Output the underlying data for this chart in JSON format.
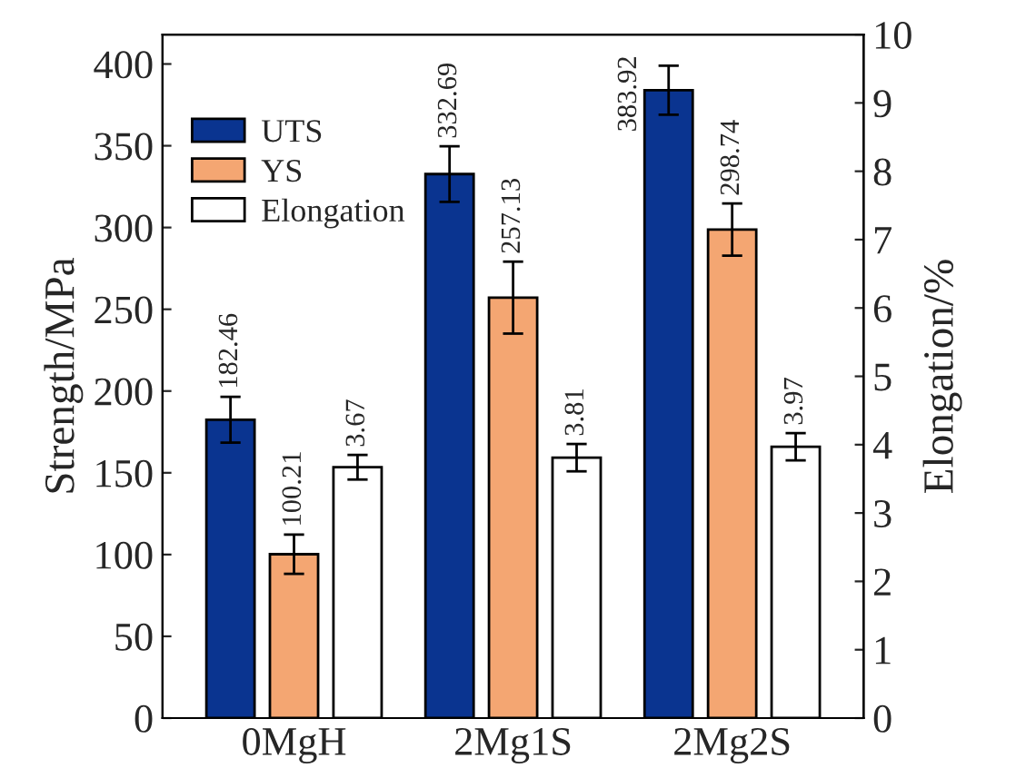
{
  "chart_data": {
    "type": "bar",
    "categories": [
      "0MgH",
      "2Mg1S",
      "2Mg2S"
    ],
    "ylabel": "Strength/MPa",
    "y2label": "Elongation/%",
    "series": [
      {
        "name": "UTS",
        "color": "#0a3490",
        "values": [
          182.46,
          332.69,
          383.92
        ],
        "errors": [
          14,
          17,
          15
        ]
      },
      {
        "name": "YS",
        "color": "#f4a672",
        "values": [
          100.21,
          257.13,
          298.74
        ],
        "errors": [
          12,
          22,
          16
        ]
      },
      {
        "name": "Elongation",
        "color": "#ffffff",
        "values": [
          3.67,
          3.81,
          3.97
        ],
        "errors": [
          0.18,
          0.2,
          0.2
        ],
        "axis": "y2"
      }
    ],
    "data_labels": true,
    "legend": "top left",
    "ylim": [
      0,
      418
    ],
    "yticks": [
      0,
      50,
      100,
      150,
      200,
      250,
      300,
      350,
      400
    ],
    "y2lim": [
      0,
      10
    ],
    "y2ticks": [
      0,
      1,
      2,
      3,
      4,
      5,
      6,
      7,
      8,
      9,
      10
    ]
  }
}
